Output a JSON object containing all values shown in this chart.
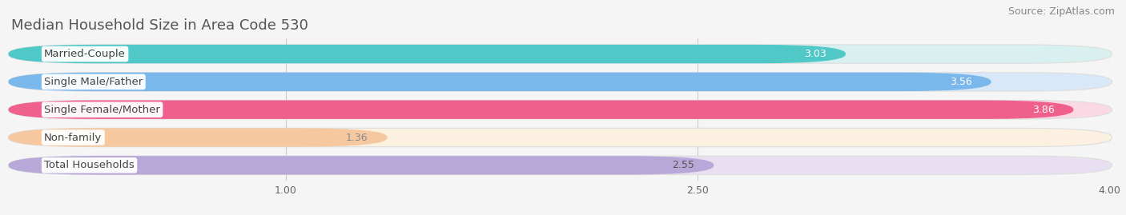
{
  "title": "Median Household Size in Area Code 530",
  "source": "Source: ZipAtlas.com",
  "categories": [
    "Married-Couple",
    "Single Male/Father",
    "Single Female/Mother",
    "Non-family",
    "Total Households"
  ],
  "values": [
    3.03,
    3.56,
    3.86,
    1.36,
    2.55
  ],
  "bar_colors": [
    "#50C8C8",
    "#7AB8EC",
    "#F0608C",
    "#F5C8A0",
    "#B8A8D8"
  ],
  "bar_bg_colors": [
    "#D8F0F0",
    "#D8E8F8",
    "#FAD8E4",
    "#FCF0E0",
    "#E8E0F0"
  ],
  "value_colors": [
    "white",
    "white",
    "white",
    "#888888",
    "#555555"
  ],
  "xlim_start": 0.0,
  "xlim_end": 4.0,
  "xticks": [
    1.0,
    2.5,
    4.0
  ],
  "title_fontsize": 13,
  "source_fontsize": 9,
  "label_fontsize": 9.5,
  "value_fontsize": 9,
  "background_color": "#f5f5f5",
  "grid_color": "#cccccc"
}
